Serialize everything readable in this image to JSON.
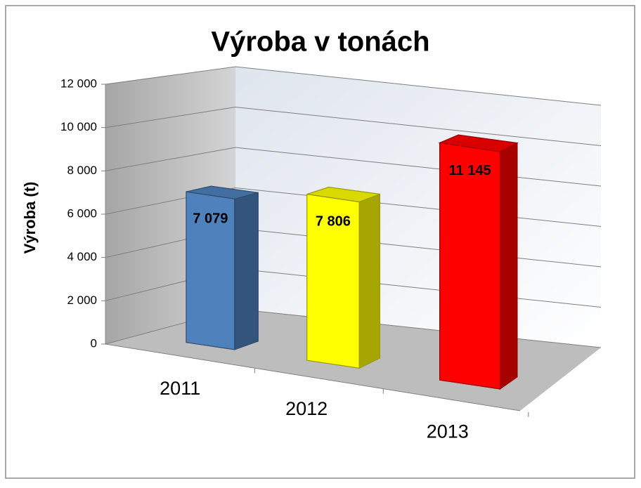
{
  "chart_data": {
    "type": "bar3d",
    "title": "Výroba v tonách",
    "y_label": "Výroba   (t)",
    "categories": [
      "2011",
      "2012",
      "2013"
    ],
    "values": [
      7079,
      7806,
      11145
    ],
    "value_labels": [
      "7 079",
      "7 806",
      "11 145"
    ],
    "colors": [
      "#4f81bd",
      "#ffff00",
      "#ff0000"
    ],
    "ylim": [
      0,
      12000
    ],
    "yticks": [
      0,
      {
        "value": 2000,
        "label": "2 000"
      },
      {
        "value": 4000,
        "label": "4 000"
      },
      {
        "value": 6000,
        "label": "6 000"
      },
      {
        "value": 8000,
        "label": "8 000"
      },
      {
        "value": 10000,
        "label": "10 000"
      },
      {
        "value": 12000,
        "label": "12 000"
      }
    ],
    "grid": true
  }
}
